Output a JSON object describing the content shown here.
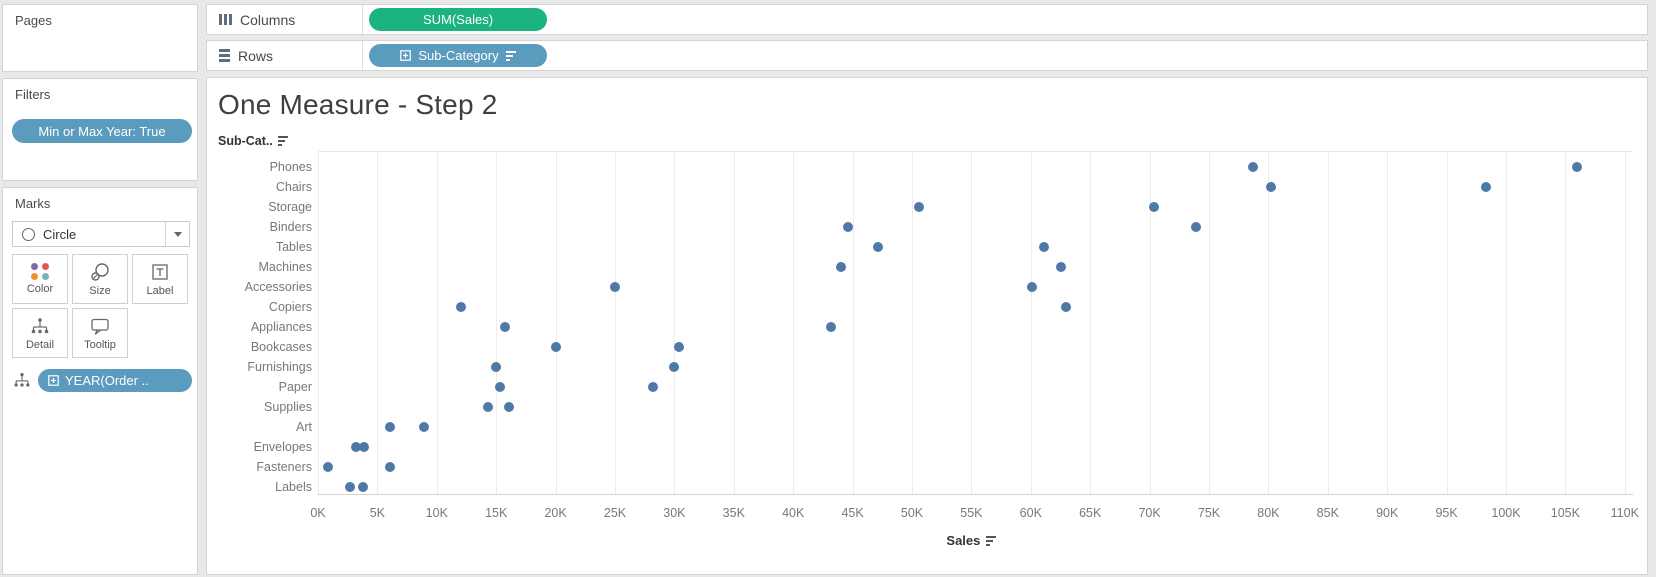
{
  "pages_card": {
    "title": "Pages"
  },
  "filters_card": {
    "title": "Filters",
    "pill_label": "Min or Max Year: True"
  },
  "marks_card": {
    "title": "Marks",
    "mark_type": "Circle",
    "buttons": [
      {
        "label": "Color"
      },
      {
        "label": "Size"
      },
      {
        "label": "Label"
      },
      {
        "label": "Detail"
      },
      {
        "label": "Tooltip"
      }
    ],
    "detail_pill_label": "YEAR(Order ..",
    "color_icon_dots": [
      "#8168a8",
      "#e15759",
      "#f28e2b",
      "#76b7b2"
    ]
  },
  "shelves": {
    "columns_label": "Columns",
    "columns_pill": "SUM(Sales)",
    "rows_label": "Rows",
    "rows_pill": "Sub-Category"
  },
  "colors": {
    "measure_pill": "#1bb382",
    "dimension_pill": "#5b9bbd",
    "mark": "#4e79a7"
  },
  "chart_data": {
    "type": "scatter",
    "title": "One Measure - Step 2",
    "row_header": "Sub-Cat..",
    "xlabel": "Sales",
    "x_unit": "K",
    "xlim_k": [
      0,
      110
    ],
    "grid": true,
    "x_ticks": [
      "0K",
      "5K",
      "10K",
      "15K",
      "20K",
      "25K",
      "30K",
      "35K",
      "40K",
      "45K",
      "50K",
      "55K",
      "60K",
      "65K",
      "70K",
      "75K",
      "80K",
      "85K",
      "90K",
      "95K",
      "100K",
      "105K",
      "110K"
    ],
    "categories": [
      "Phones",
      "Chairs",
      "Storage",
      "Binders",
      "Tables",
      "Machines",
      "Accessories",
      "Copiers",
      "Appliances",
      "Bookcases",
      "Furnishings",
      "Paper",
      "Supplies",
      "Art",
      "Envelopes",
      "Fasteners",
      "Labels"
    ],
    "values_k": [
      [
        78.7,
        106.0
      ],
      [
        80.2,
        98.3
      ],
      [
        50.6,
        70.4
      ],
      [
        44.6,
        73.9
      ],
      [
        47.1,
        61.1
      ],
      [
        44.0,
        62.5
      ],
      [
        25.0,
        60.1
      ],
      [
        12.0,
        63.0
      ],
      [
        15.7,
        43.2
      ],
      [
        20.0,
        30.4
      ],
      [
        15.0,
        30.0
      ],
      [
        15.3,
        28.2
      ],
      [
        14.3,
        16.1
      ],
      [
        6.1,
        8.9
      ],
      [
        3.2,
        3.9
      ],
      [
        0.8,
        6.1
      ],
      [
        2.7,
        3.8
      ]
    ],
    "points_note": "two marks per sub-category (min and max YEAR(Order Date)), values in thousands of Sales"
  }
}
